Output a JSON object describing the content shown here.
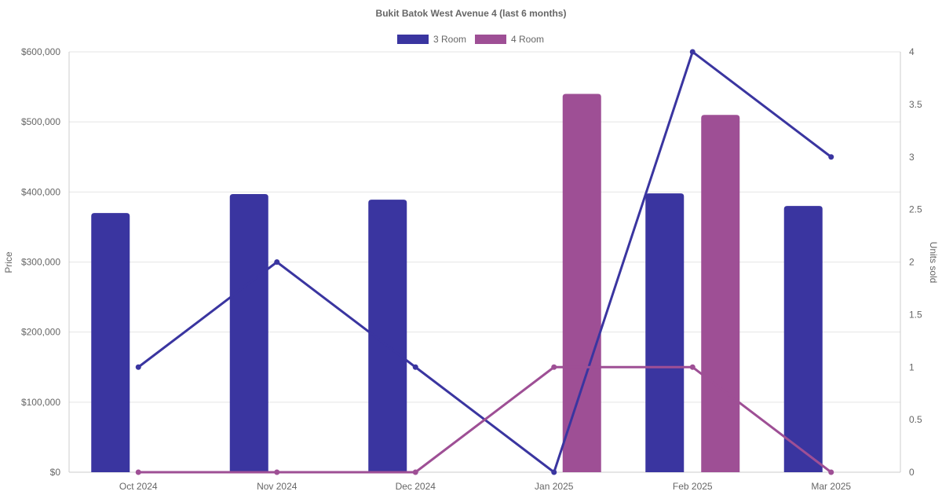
{
  "chart_data": {
    "type": "bar",
    "title": "Bukit Batok West Avenue 4 (last 6 months)",
    "categories": [
      "Oct 2024",
      "Nov 2024",
      "Dec 2024",
      "Jan 2025",
      "Feb 2025",
      "Mar 2025"
    ],
    "ylabel_left": "Price",
    "ylabel_right": "Units sold",
    "y_left": {
      "min": 0,
      "max": 600000,
      "step": 100000,
      "ticks": [
        "$0",
        "$100,000",
        "$200,000",
        "$300,000",
        "$400,000",
        "$500,000",
        "$600,000"
      ]
    },
    "y_right": {
      "min": 0,
      "max": 4,
      "step": 0.5,
      "ticks": [
        "0",
        "0.5",
        "1",
        "1.5",
        "2",
        "2.5",
        "3",
        "3.5",
        "4"
      ]
    },
    "legend_position": "top-center",
    "grid": true,
    "series": [
      {
        "name": "3 Room",
        "color": "#3a35a0",
        "price": [
          370000,
          397000,
          389000,
          null,
          398000,
          380000
        ],
        "units": [
          1,
          2,
          1,
          0,
          4,
          3
        ]
      },
      {
        "name": "4 Room",
        "color": "#9e4f95",
        "price": [
          null,
          null,
          null,
          540000,
          510000,
          null
        ],
        "units": [
          0,
          0,
          0,
          1,
          1,
          0
        ]
      }
    ]
  }
}
